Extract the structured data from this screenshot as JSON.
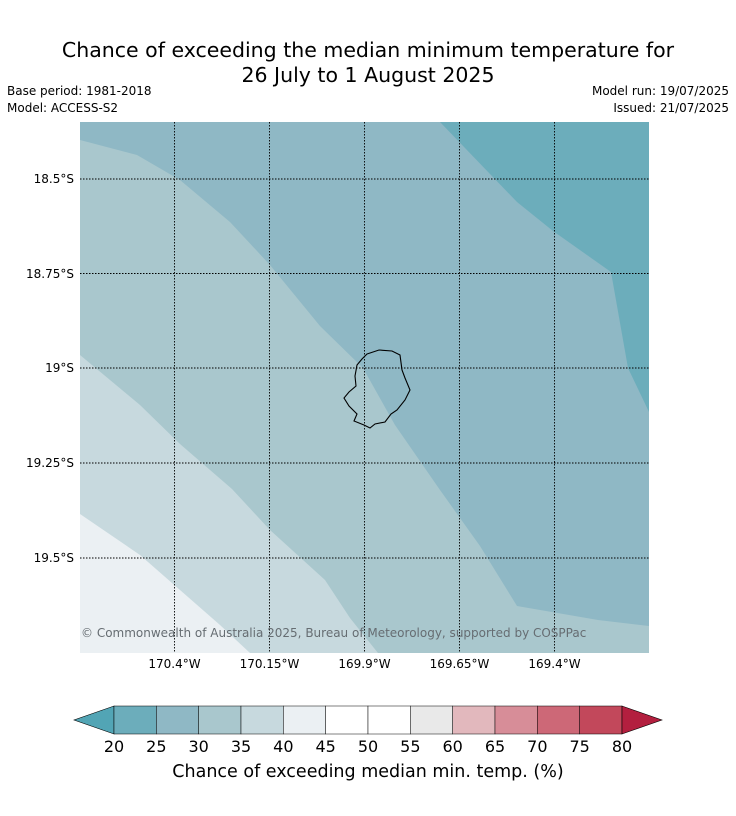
{
  "header": {
    "title_line1": "Chance of exceeding the median minimum temperature for",
    "title_line2": "26 July to 1 August 2025",
    "base_period": "Base period: 1981-2018",
    "model": "Model: ACCESS-S2",
    "model_run": "Model run: 19/07/2025",
    "issued": "Issued: 21/07/2025"
  },
  "map": {
    "copyright": "© Commonwealth of Australia 2025, Bureau of Meteorology, supported by COSPPac",
    "lat_labels": [
      "18.5°S",
      "18.75°S",
      "19°S",
      "19.25°S",
      "19.5°S"
    ],
    "lon_labels": [
      "170.4°W",
      "170.15°W",
      "169.9°W",
      "169.65°W",
      "169.4°W"
    ],
    "category_colors": {
      "20-25": "#6cadbb",
      "25-30": "#8fb8c5",
      "30-35": "#a9c7cd",
      "35-40": "#c7d9de",
      "40-45": "#ebf0f3"
    }
  },
  "colorbar": {
    "ticks": [
      "20",
      "25",
      "30",
      "35",
      "40",
      "45",
      "50",
      "55",
      "60",
      "65",
      "70",
      "75",
      "80"
    ],
    "colors": [
      "#6cadbb",
      "#8fb8c5",
      "#a9c7cd",
      "#c7d9de",
      "#ebf0f3",
      "#ffffff",
      "#ffffff",
      "#e9e9e9",
      "#e2b8bd",
      "#d78d98",
      "#cd6877",
      "#c2485b"
    ],
    "under_color": "#52a5b5",
    "over_color": "#b31f3f",
    "label": "Chance of exceeding median min. temp. (%)"
  }
}
